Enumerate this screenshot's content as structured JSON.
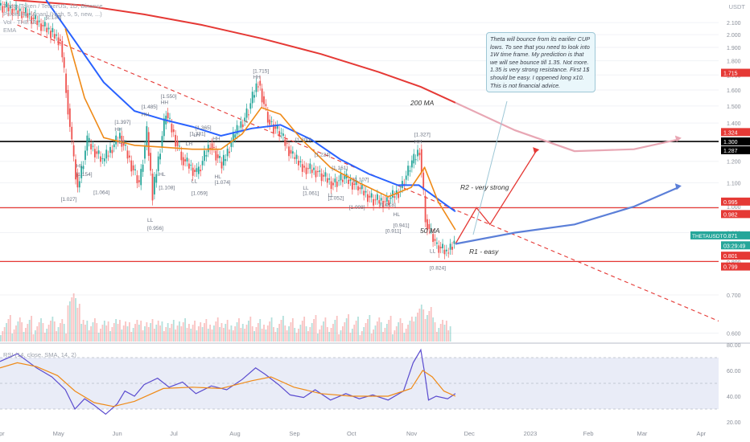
{
  "header": {
    "symbol_line": "Theta Token / TetherUS, 1D, Binance",
    "pivots_line": "Pivots HL [Anan] (High, 5, 5, new, ...)",
    "vol_line": "Vol · THETA",
    "ema_line": "EMA"
  },
  "price_axis": {
    "currency": "USDT",
    "ticks": [
      "2.100",
      "2.000",
      "1.900",
      "1.800",
      "1.700",
      "1.600",
      "1.500",
      "1.400",
      "1.300",
      "1.200",
      "1.100",
      "1.000",
      "0.900",
      "0.800",
      "0.700",
      "0.600"
    ],
    "tags": [
      {
        "label": "1.715",
        "color": "#e53935"
      },
      {
        "label": "1.324",
        "color": "#e53935"
      },
      {
        "label": "1.300",
        "color": "#000000"
      },
      {
        "label": "1.287",
        "color": "#000000"
      },
      {
        "label": "0.995",
        "color": "#e53935"
      },
      {
        "label": "0.982",
        "color": "#e53935"
      },
      {
        "label": "0.871",
        "color": "#26a69a"
      },
      {
        "label": "03:29:49",
        "color": "#26a69a"
      },
      {
        "label": "0.801",
        "color": "#e53935"
      },
      {
        "label": "0.799",
        "color": "#e53935"
      }
    ],
    "symbol_tag": "THETAUSDT"
  },
  "rsi": {
    "label": "RSI (14, close, SMA, 14, 2)",
    "ticks": [
      "80.00",
      "60.00",
      "40.00",
      "20.00"
    ]
  },
  "time_axis": [
    "Apr",
    "May",
    "Jun",
    "Jul",
    "Aug",
    "Sep",
    "Oct",
    "Nov",
    "Dec",
    "2023",
    "Feb",
    "Mar",
    "Apr"
  ],
  "annotation_note": "Theta will bounce from its earilier CUP lows. To see that you need to look into 1W time frame. My prediction is that we will see bounce till 1.35. Not more. 1.35 is very strong resistance. First 1$ should be easy. I oppened long x10. This is not financial advice.",
  "chart_labels": {
    "ma200": "200 MA",
    "ma50": "50 MA",
    "r2": "R2 - very strong",
    "r1": "R1 - easy"
  },
  "pivot_labels": [
    {
      "text": "[2.130]",
      "date": "2022-04-28",
      "price": 2.13
    },
    {
      "text": "HH",
      "date": "2022-06-17",
      "price": 1.44
    },
    {
      "text": "[1.485]",
      "date": "2022-06-17",
      "price": 1.485
    },
    {
      "text": "HH",
      "date": "2022-06-03",
      "price": 1.355
    },
    {
      "text": "[1.397]",
      "date": "2022-06-03",
      "price": 1.397
    },
    {
      "text": "LH",
      "date": "2022-06-05",
      "price": 1.29
    },
    {
      "text": "HH",
      "date": "2022-06-27",
      "price": 1.512
    },
    {
      "text": "[1.550]",
      "date": "2022-06-27",
      "price": 1.55
    },
    {
      "text": "[1.365]",
      "date": "2022-07-15",
      "price": 1.365
    },
    {
      "text": "LH",
      "date": "2022-07-14",
      "price": 1.325
    },
    {
      "text": "[1.331]",
      "date": "2022-07-12",
      "price": 1.332
    },
    {
      "text": "LH",
      "date": "2022-07-10",
      "price": 1.28
    },
    {
      "text": "HH",
      "date": "2022-07-24",
      "price": 1.306
    },
    {
      "text": "[1.715]",
      "date": "2022-08-14",
      "price": 1.715
    },
    {
      "text": "HH",
      "date": "2022-08-14",
      "price": 1.675
    },
    {
      "text": "[1.300]",
      "date": "2022-09-05",
      "price": 1.3
    },
    {
      "text": "[1.224]",
      "date": "2022-09-15",
      "price": 1.224
    },
    {
      "text": "[1.161]",
      "date": "2022-09-24",
      "price": 1.161
    },
    {
      "text": "[1.107]",
      "date": "2022-10-05",
      "price": 1.107
    },
    {
      "text": "[1.327]",
      "date": "2022-11-06",
      "price": 1.327
    },
    {
      "text": "HH",
      "date": "2022-11-06",
      "price": 1.29
    },
    {
      "text": "HL",
      "date": "2022-05-14",
      "price": 1.17
    },
    {
      "text": "[1.154]",
      "date": "2022-05-14",
      "price": 1.13
    },
    {
      "text": "[1.064]",
      "date": "2022-05-23",
      "price": 1.052
    },
    {
      "text": "[1.027]",
      "date": "2022-05-06",
      "price": 1.022
    },
    {
      "text": "HL",
      "date": "2022-06-26",
      "price": 1.13
    },
    {
      "text": "[1.108]",
      "date": "2022-06-26",
      "price": 1.072
    },
    {
      "text": "LL",
      "date": "2022-06-20",
      "price": 0.94
    },
    {
      "text": "[0.956]",
      "date": "2022-06-20",
      "price": 0.91
    },
    {
      "text": "LL",
      "date": "2022-07-13",
      "price": 1.1
    },
    {
      "text": "[1.059]",
      "date": "2022-07-13",
      "price": 1.048
    },
    {
      "text": "HL",
      "date": "2022-07-25",
      "price": 1.12
    },
    {
      "text": "[1.074]",
      "date": "2022-07-25",
      "price": 1.095
    },
    {
      "text": "LL",
      "date": "2022-09-09",
      "price": 1.07
    },
    {
      "text": "[1.061]",
      "date": "2022-09-09",
      "price": 1.048
    },
    {
      "text": "LL",
      "date": "2022-09-22",
      "price": 1.04
    },
    {
      "text": "[1.052]",
      "date": "2022-09-22",
      "price": 1.028
    },
    {
      "text": "[1.008]",
      "date": "2022-10-03",
      "price": 0.99
    },
    {
      "text": "[1.018]",
      "date": "2022-10-19",
      "price": 1.0
    },
    {
      "text": "HL",
      "date": "2022-10-26",
      "price": 0.962
    },
    {
      "text": "[0.941]",
      "date": "2022-10-26",
      "price": 0.92
    },
    {
      "text": "[0.911]",
      "date": "2022-10-22",
      "price": 0.9
    },
    {
      "text": "LL",
      "date": "2022-11-14",
      "price": 0.83
    },
    {
      "text": "[0.824]",
      "date": "2022-11-14",
      "price": 0.775
    }
  ],
  "colors": {
    "ma200": "#e53935",
    "ma50": "#2962ff",
    "ema_orange": "#ef8a17",
    "resistance_red": "#e53935",
    "support_black": "#000000",
    "rsi_line": "#5b4ccf",
    "rsi_ma": "#ef8a17",
    "rsi_band": "#e9ecf7",
    "candle_up": "#26a69a",
    "candle_down": "#ef5350",
    "projection_red": "#e53935",
    "projection_blue": "#5b7fd8",
    "projection_pink": "#e8a7b4"
  },
  "chart_data": [
    {
      "type": "line",
      "title": "Theta Token / TetherUS, 1D, Binance",
      "scale": "log",
      "ylim": [
        0.58,
        2.3
      ],
      "xlim": [
        "2022-04-01",
        "2023-04-10"
      ],
      "ohlc_samples": [
        {
          "date": "2022-04-01",
          "close": 2.25
        },
        {
          "date": "2022-04-15",
          "close": 2.18
        },
        {
          "date": "2022-04-28",
          "close": 2.02
        },
        {
          "date": "2022-05-03",
          "close": 1.95
        },
        {
          "date": "2022-05-06",
          "close": 1.6
        },
        {
          "date": "2022-05-09",
          "close": 1.28
        },
        {
          "date": "2022-05-12",
          "close": 1.08
        },
        {
          "date": "2022-05-17",
          "close": 1.3
        },
        {
          "date": "2022-05-25",
          "close": 1.2
        },
        {
          "date": "2022-06-03",
          "close": 1.33
        },
        {
          "date": "2022-06-13",
          "close": 1.09
        },
        {
          "date": "2022-06-17",
          "close": 1.35
        },
        {
          "date": "2022-06-20",
          "close": 1.05
        },
        {
          "date": "2022-06-27",
          "close": 1.46
        },
        {
          "date": "2022-07-05",
          "close": 1.22
        },
        {
          "date": "2022-07-13",
          "close": 1.14
        },
        {
          "date": "2022-07-20",
          "close": 1.29
        },
        {
          "date": "2022-07-26",
          "close": 1.18
        },
        {
          "date": "2022-08-01",
          "close": 1.32
        },
        {
          "date": "2022-08-08",
          "close": 1.45
        },
        {
          "date": "2022-08-14",
          "close": 1.66
        },
        {
          "date": "2022-08-19",
          "close": 1.42
        },
        {
          "date": "2022-08-26",
          "close": 1.33
        },
        {
          "date": "2022-09-01",
          "close": 1.22
        },
        {
          "date": "2022-09-07",
          "close": 1.17
        },
        {
          "date": "2022-09-14",
          "close": 1.15
        },
        {
          "date": "2022-09-21",
          "close": 1.1
        },
        {
          "date": "2022-09-28",
          "close": 1.12
        },
        {
          "date": "2022-10-05",
          "close": 1.08
        },
        {
          "date": "2022-10-12",
          "close": 1.03
        },
        {
          "date": "2022-10-19",
          "close": 1.02
        },
        {
          "date": "2022-10-26",
          "close": 1.06
        },
        {
          "date": "2022-11-02",
          "close": 1.19
        },
        {
          "date": "2022-11-06",
          "close": 1.26
        },
        {
          "date": "2022-11-09",
          "close": 0.95
        },
        {
          "date": "2022-11-14",
          "close": 0.86
        },
        {
          "date": "2022-11-20",
          "close": 0.83
        },
        {
          "date": "2022-11-24",
          "close": 0.871
        }
      ],
      "series": [
        {
          "name": "200 MA",
          "points": [
            [
              "2022-04-08",
              2.3
            ],
            [
              "2022-05-15",
              2.25
            ],
            [
              "2022-06-15",
              2.17
            ],
            [
              "2022-07-15",
              2.08
            ],
            [
              "2022-08-15",
              1.97
            ],
            [
              "2022-09-15",
              1.85
            ],
            [
              "2022-10-15",
              1.72
            ],
            [
              "2022-11-06",
              1.62
            ],
            [
              "2022-11-24",
              1.52
            ]
          ]
        },
        {
          "name": "50 MA",
          "points": [
            [
              "2022-04-25",
              2.3
            ],
            [
              "2022-05-10",
              1.95
            ],
            [
              "2022-05-25",
              1.65
            ],
            [
              "2022-06-10",
              1.47
            ],
            [
              "2022-06-25",
              1.42
            ],
            [
              "2022-07-10",
              1.38
            ],
            [
              "2022-07-25",
              1.33
            ],
            [
              "2022-08-10",
              1.37
            ],
            [
              "2022-08-25",
              1.39
            ],
            [
              "2022-09-10",
              1.31
            ],
            [
              "2022-09-25",
              1.21
            ],
            [
              "2022-10-10",
              1.14
            ],
            [
              "2022-10-25",
              1.09
            ],
            [
              "2022-11-05",
              1.09
            ],
            [
              "2022-11-15",
              1.03
            ],
            [
              "2022-11-24",
              0.98
            ]
          ]
        },
        {
          "points": [
            [
              "2022-05-05",
              2.05
            ],
            [
              "2022-05-15",
              1.55
            ],
            [
              "2022-05-25",
              1.32
            ],
            [
              "2022-06-10",
              1.28
            ],
            [
              "2022-06-25",
              1.27
            ],
            [
              "2022-07-10",
              1.26
            ],
            [
              "2022-07-25",
              1.26
            ],
            [
              "2022-08-05",
              1.34
            ],
            [
              "2022-08-15",
              1.49
            ],
            [
              "2022-08-25",
              1.45
            ],
            [
              "2022-09-05",
              1.31
            ],
            [
              "2022-09-20",
              1.17
            ],
            [
              "2022-10-05",
              1.1
            ],
            [
              "2022-10-20",
              1.04
            ],
            [
              "2022-11-01",
              1.08
            ],
            [
              "2022-11-08",
              1.17
            ],
            [
              "2022-11-15",
              1.02
            ],
            [
              "2022-11-24",
              0.91
            ]
          ]
        }
      ],
      "horizontal_levels": [
        1.324,
        1.3,
        0.995,
        0.801
      ],
      "trendline": [
        [
          "2022-04-10",
          2.08
        ],
        [
          "2023-04-10",
          0.63
        ]
      ],
      "projections": [
        {
          "color": "projection_red",
          "points": [
            [
              "2022-11-24",
              0.86
            ],
            [
              "2022-12-05",
              0.995
            ],
            [
              "2022-12-12",
              0.93
            ],
            [
              "2023-01-05",
              1.25
            ]
          ]
        },
        {
          "color": "projection_blue",
          "points": [
            [
              "2022-11-24",
              0.86
            ],
            [
              "2022-12-25",
              0.9
            ],
            [
              "2023-01-25",
              0.93
            ],
            [
              "2023-02-25",
              1.0
            ],
            [
              "2023-03-20",
              1.08
            ]
          ]
        },
        {
          "color": "projection_pink",
          "points": [
            [
              "2022-11-24",
              1.52
            ],
            [
              "2022-12-25",
              1.36
            ],
            [
              "2023-01-25",
              1.25
            ],
            [
              "2023-02-25",
              1.26
            ],
            [
              "2023-03-20",
              1.31
            ]
          ]
        }
      ]
    },
    {
      "type": "line",
      "title": "RSI (14, close, SMA, 14, 2)",
      "ylim": [
        20,
        80
      ],
      "bands": [
        30,
        70
      ],
      "series": [
        {
          "name": "RSI",
          "points": [
            [
              "2022-04-01",
              67
            ],
            [
              "2022-04-10",
              73
            ],
            [
              "2022-04-20",
              62
            ],
            [
              "2022-04-28",
              55
            ],
            [
              "2022-05-05",
              45
            ],
            [
              "2022-05-10",
              30
            ],
            [
              "2022-05-15",
              38
            ],
            [
              "2022-05-20",
              33
            ],
            [
              "2022-05-26",
              26
            ],
            [
              "2022-06-01",
              34
            ],
            [
              "2022-06-05",
              44
            ],
            [
              "2022-06-10",
              40
            ],
            [
              "2022-06-15",
              49
            ],
            [
              "2022-06-22",
              54
            ],
            [
              "2022-06-28",
              47
            ],
            [
              "2022-07-05",
              51
            ],
            [
              "2022-07-12",
              42
            ],
            [
              "2022-07-20",
              48
            ],
            [
              "2022-07-28",
              45
            ],
            [
              "2022-08-05",
              53
            ],
            [
              "2022-08-12",
              62
            ],
            [
              "2022-08-17",
              57
            ],
            [
              "2022-08-24",
              49
            ],
            [
              "2022-08-30",
              41
            ],
            [
              "2022-09-06",
              39
            ],
            [
              "2022-09-12",
              45
            ],
            [
              "2022-09-20",
              37
            ],
            [
              "2022-09-28",
              42
            ],
            [
              "2022-10-05",
              38
            ],
            [
              "2022-10-12",
              41
            ],
            [
              "2022-10-20",
              37
            ],
            [
              "2022-10-28",
              44
            ],
            [
              "2022-11-02",
              66
            ],
            [
              "2022-11-06",
              76
            ],
            [
              "2022-11-08",
              58
            ],
            [
              "2022-11-10",
              37
            ],
            [
              "2022-11-14",
              40
            ],
            [
              "2022-11-20",
              38
            ],
            [
              "2022-11-24",
              42
            ]
          ]
        },
        {
          "name": "RSI-based MA",
          "points": [
            [
              "2022-04-01",
              62
            ],
            [
              "2022-04-10",
              66
            ],
            [
              "2022-04-20",
              63
            ],
            [
              "2022-05-01",
              56
            ],
            [
              "2022-05-10",
              44
            ],
            [
              "2022-05-20",
              35
            ],
            [
              "2022-05-30",
              32
            ],
            [
              "2022-06-10",
              36
            ],
            [
              "2022-06-25",
              46
            ],
            [
              "2022-07-10",
              47
            ],
            [
              "2022-07-25",
              46
            ],
            [
              "2022-08-10",
              52
            ],
            [
              "2022-08-20",
              55
            ],
            [
              "2022-09-01",
              47
            ],
            [
              "2022-09-15",
              42
            ],
            [
              "2022-10-01",
              40
            ],
            [
              "2022-10-20",
              40
            ],
            [
              "2022-11-01",
              46
            ],
            [
              "2022-11-07",
              60
            ],
            [
              "2022-11-12",
              55
            ],
            [
              "2022-11-18",
              44
            ],
            [
              "2022-11-24",
              40
            ]
          ]
        }
      ]
    }
  ]
}
